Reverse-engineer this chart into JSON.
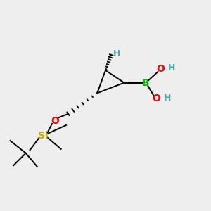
{
  "bg_color": "#eeeeee",
  "bond_color": "#000000",
  "B_color": "#00bb00",
  "O_color": "#ff0000",
  "Si_color": "#ccaa00",
  "H_color": "#4aabab",
  "H_dash_color": "#4aabab",
  "figsize": [
    3.0,
    3.0
  ],
  "dpi": 100,
  "xlim": [
    0,
    10
  ],
  "ylim": [
    0,
    10
  ]
}
